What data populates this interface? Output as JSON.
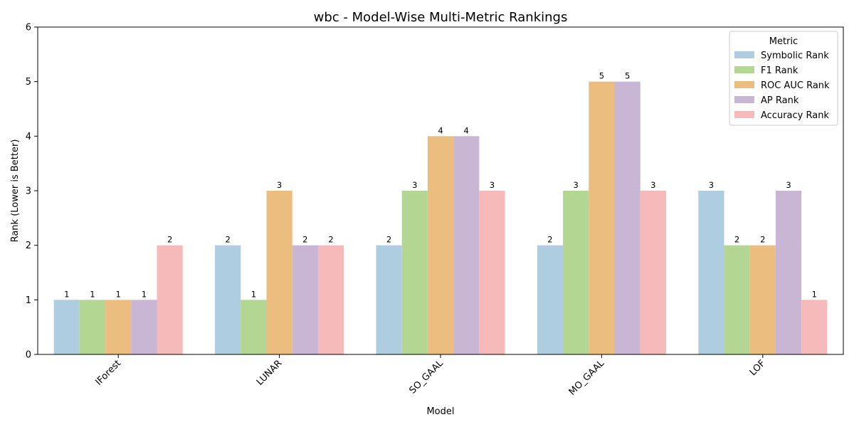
{
  "chart_data": {
    "type": "bar",
    "title": "wbc - Model-Wise Multi-Metric Rankings",
    "xlabel": "Model",
    "ylabel": "Rank (Lower is Better)",
    "ylim": [
      0,
      6
    ],
    "yticks": [
      0,
      1,
      2,
      3,
      4,
      5,
      6
    ],
    "categories": [
      "IForest",
      "LUNAR",
      "SO_GAAL",
      "MO_GAAL",
      "LOF"
    ],
    "legend": {
      "title": "Metric",
      "placement": "top-right"
    },
    "grid": false,
    "series": [
      {
        "name": "Symbolic Rank",
        "color": "#aecde0",
        "values": [
          1,
          2,
          2,
          2,
          3
        ]
      },
      {
        "name": "F1 Rank",
        "color": "#b3d693",
        "values": [
          1,
          1,
          3,
          3,
          2
        ]
      },
      {
        "name": "ROC AUC Rank",
        "color": "#ebbd7f",
        "values": [
          1,
          3,
          4,
          5,
          2
        ]
      },
      {
        "name": "AP Rank",
        "color": "#c8b6d4",
        "values": [
          1,
          2,
          4,
          5,
          3
        ]
      },
      {
        "name": "Accuracy Rank",
        "color": "#f5bab9",
        "values": [
          2,
          2,
          3,
          3,
          1
        ]
      }
    ]
  }
}
